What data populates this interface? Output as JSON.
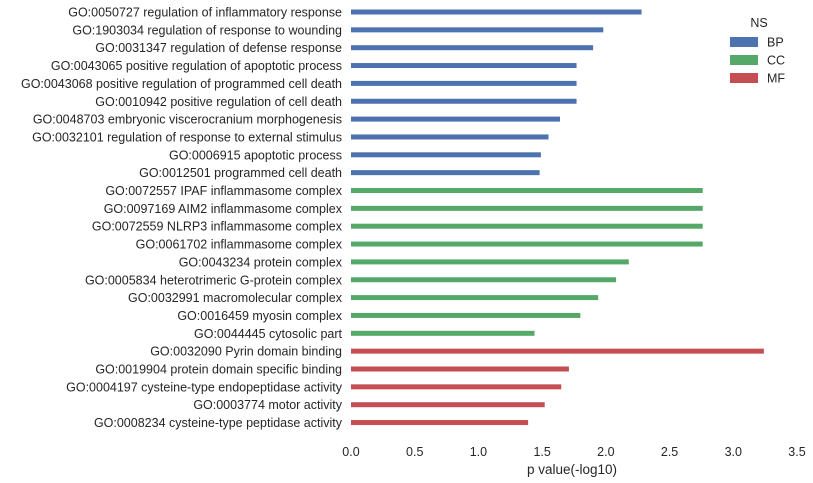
{
  "chart_data": {
    "type": "bar",
    "orientation": "horizontal",
    "xlabel": "p value(-log10)",
    "xlim": [
      0,
      3.5
    ],
    "xticks": [
      "0.0",
      "0.5",
      "1.0",
      "1.5",
      "2.0",
      "2.5",
      "3.0",
      "3.5"
    ],
    "grid": false,
    "legend": {
      "title": "NS",
      "placement": "top-right",
      "entries": [
        {
          "name": "BP",
          "color": "#4c72b0"
        },
        {
          "name": "CC",
          "color": "#55a868"
        },
        {
          "name": "MF",
          "color": "#c44e52"
        }
      ]
    },
    "bars": [
      {
        "label": "GO:0050727 regulation of inflammatory response",
        "value": 2.28,
        "group": "BP"
      },
      {
        "label": "GO:1903034 regulation of response to wounding",
        "value": 1.98,
        "group": "BP"
      },
      {
        "label": "GO:0031347 regulation of defense response",
        "value": 1.9,
        "group": "BP"
      },
      {
        "label": "GO:0043065 positive regulation of apoptotic process",
        "value": 1.77,
        "group": "BP"
      },
      {
        "label": "GO:0043068 positive regulation of programmed cell death",
        "value": 1.77,
        "group": "BP"
      },
      {
        "label": "GO:0010942 positive regulation of cell death",
        "value": 1.77,
        "group": "BP"
      },
      {
        "label": "GO:0048703 embryonic viscerocranium morphogenesis",
        "value": 1.64,
        "group": "BP"
      },
      {
        "label": "GO:0032101 regulation of response to external stimulus",
        "value": 1.55,
        "group": "BP"
      },
      {
        "label": "GO:0006915 apoptotic process",
        "value": 1.49,
        "group": "BP"
      },
      {
        "label": "GO:0012501 programmed cell death",
        "value": 1.48,
        "group": "BP"
      },
      {
        "label": "GO:0072557 IPAF inflammasome complex",
        "value": 2.76,
        "group": "CC"
      },
      {
        "label": "GO:0097169 AIM2 inflammasome complex",
        "value": 2.76,
        "group": "CC"
      },
      {
        "label": "GO:0072559 NLRP3 inflammasome complex",
        "value": 2.76,
        "group": "CC"
      },
      {
        "label": "GO:0061702 inflammasome complex",
        "value": 2.76,
        "group": "CC"
      },
      {
        "label": "GO:0043234 protein complex",
        "value": 2.18,
        "group": "CC"
      },
      {
        "label": "GO:0005834 heterotrimeric G-protein complex",
        "value": 2.08,
        "group": "CC"
      },
      {
        "label": "GO:0032991 macromolecular complex",
        "value": 1.94,
        "group": "CC"
      },
      {
        "label": "GO:0016459 myosin complex",
        "value": 1.8,
        "group": "CC"
      },
      {
        "label": "GO:0044445 cytosolic part",
        "value": 1.44,
        "group": "CC"
      },
      {
        "label": "GO:0032090 Pyrin domain binding",
        "value": 3.24,
        "group": "MF"
      },
      {
        "label": "GO:0019904 protein domain specific binding",
        "value": 1.71,
        "group": "MF"
      },
      {
        "label": "GO:0004197 cysteine-type endopeptidase activity",
        "value": 1.65,
        "group": "MF"
      },
      {
        "label": "GO:0003774 motor activity",
        "value": 1.52,
        "group": "MF"
      },
      {
        "label": "GO:0008234 cysteine-type peptidase activity",
        "value": 1.39,
        "group": "MF"
      }
    ]
  }
}
